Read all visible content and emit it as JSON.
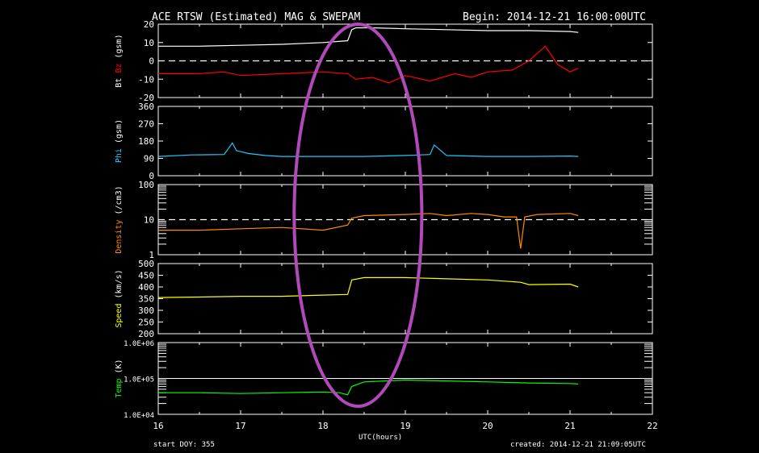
{
  "header": {
    "title": "ACE RTSW (Estimated) MAG & SWEPAM",
    "begin": "Begin: 2014-12-21 16:00:00UTC"
  },
  "footer": {
    "start": "start DOY: 355",
    "created": "created: 2014-12-21 21:09:05UTC",
    "xlabel": "UTC(hours)"
  },
  "colors": {
    "bt": "#ffffff",
    "bz": "#ff0000",
    "phi": "#22c8ff",
    "density": "#ff8c00",
    "speed": "#ffff00",
    "temp": "#00ff00",
    "highlight": "#b04ab8"
  },
  "chart_data": {
    "type": "line",
    "x_axis": {
      "ticks": [
        "16",
        "17",
        "18",
        "19",
        "20",
        "21",
        "22"
      ],
      "range": [
        16,
        22
      ],
      "label": "UTC(hours)"
    },
    "highlight_ellipse_x_range": [
      17.65,
      19.2
    ],
    "panels": [
      {
        "id": "mag",
        "ylabel": [
          "Bt",
          " Bz",
          "  (gsm)"
        ],
        "ylim": [
          -20,
          20
        ],
        "ticks": [
          "20",
          "10",
          "0",
          "-10",
          "-20"
        ],
        "tick_values": [
          20,
          10,
          0,
          -10,
          -20
        ],
        "scale": "linear",
        "dashed_line": 0,
        "series": [
          {
            "name": "Bt",
            "color": "#ffffff",
            "x": [
              16,
              16.5,
              17,
              17.5,
              18,
              18.3,
              18.35,
              18.4,
              18.6,
              19,
              19.5,
              20,
              20.5,
              21,
              21.1
            ],
            "y": [
              8,
              8,
              8.5,
              9,
              10,
              11,
              17,
              18,
              18,
              17.5,
              17,
              16.5,
              16.5,
              16,
              15.5
            ]
          },
          {
            "name": "Bz",
            "color": "#ff0000",
            "x": [
              16,
              16.5,
              16.8,
              17,
              17.5,
              18,
              18.3,
              18.4,
              18.6,
              18.8,
              19,
              19.3,
              19.6,
              19.8,
              20,
              20.3,
              20.5,
              20.7,
              20.85,
              21,
              21.1
            ],
            "y": [
              -7,
              -7,
              -6,
              -8,
              -7,
              -6,
              -7,
              -10,
              -9,
              -12,
              -8,
              -11,
              -7,
              -9,
              -6,
              -5,
              0,
              8,
              -2,
              -6,
              -4
            ]
          }
        ]
      },
      {
        "id": "phi",
        "ylabel": [
          "Phi",
          "  (gsm)"
        ],
        "ylim": [
          0,
          360
        ],
        "ticks": [
          "360",
          "270",
          "180",
          "90",
          "0"
        ],
        "tick_values": [
          360,
          270,
          180,
          90,
          0
        ],
        "scale": "linear",
        "series": [
          {
            "name": "Phi",
            "color": "#22c8ff",
            "x": [
              16,
              16.4,
              16.8,
              16.9,
              16.95,
              17.1,
              17.3,
              17.5,
              18,
              18.5,
              19,
              19.3,
              19.35,
              19.5,
              20,
              20.5,
              21,
              21.1
            ],
            "y": [
              100,
              108,
              110,
              170,
              130,
              115,
              105,
              100,
              100,
              100,
              105,
              110,
              160,
              105,
              100,
              100,
              102,
              100
            ]
          }
        ]
      },
      {
        "id": "density",
        "ylabel": [
          "Density",
          "  (/cm3)"
        ],
        "ylim": [
          1,
          100
        ],
        "ticks": [
          "100",
          "10",
          "1"
        ],
        "tick_values": [
          100,
          10,
          1
        ],
        "scale": "log",
        "dashed_line": 10,
        "series": [
          {
            "name": "Density",
            "color": "#ff8c00",
            "x": [
              16,
              16.5,
              17,
              17.5,
              18,
              18.3,
              18.35,
              18.5,
              19,
              19.3,
              19.5,
              19.8,
              20,
              20.2,
              20.35,
              20.4,
              20.45,
              20.6,
              21,
              21.1
            ],
            "y": [
              5,
              5,
              5.5,
              6,
              5,
              7,
              11,
              13,
              14,
              15,
              13,
              15,
              14,
              12,
              12,
              1.5,
              12,
              14,
              15,
              13
            ]
          }
        ]
      },
      {
        "id": "speed",
        "ylabel": [
          "Speed",
          "  (km/s)"
        ],
        "ylim": [
          200,
          500
        ],
        "ticks": [
          "500",
          "450",
          "400",
          "350",
          "300",
          "250",
          "200"
        ],
        "tick_values": [
          500,
          450,
          400,
          350,
          300,
          250,
          200
        ],
        "scale": "linear",
        "series": [
          {
            "name": "Speed",
            "color": "#ffff00",
            "x": [
              16,
              16.5,
              17,
              17.5,
              18,
              18.3,
              18.35,
              18.5,
              19,
              19.5,
              20,
              20.4,
              20.5,
              21,
              21.1
            ],
            "y": [
              355,
              357,
              360,
              360,
              365,
              368,
              430,
              440,
              440,
              435,
              430,
              420,
              410,
              412,
              400
            ]
          }
        ]
      },
      {
        "id": "temp",
        "ylabel": [
          "Temp",
          "  (K)"
        ],
        "ylim": [
          10000,
          1000000
        ],
        "ticks": [
          "1.0E+06",
          "1.0E+05",
          "1.0E+04"
        ],
        "tick_values": [
          1000000,
          100000,
          10000
        ],
        "scale": "log",
        "solid_line": 100000,
        "series": [
          {
            "name": "Temp",
            "color": "#00ff00",
            "x": [
              16,
              16.5,
              17,
              17.5,
              18,
              18.2,
              18.3,
              18.35,
              18.5,
              19,
              19.5,
              20,
              20.5,
              21,
              21.1
            ],
            "y": [
              40000,
              40000,
              38000,
              40000,
              42000,
              40000,
              35000,
              60000,
              80000,
              90000,
              85000,
              80000,
              75000,
              72000,
              70000
            ]
          }
        ]
      }
    ]
  }
}
